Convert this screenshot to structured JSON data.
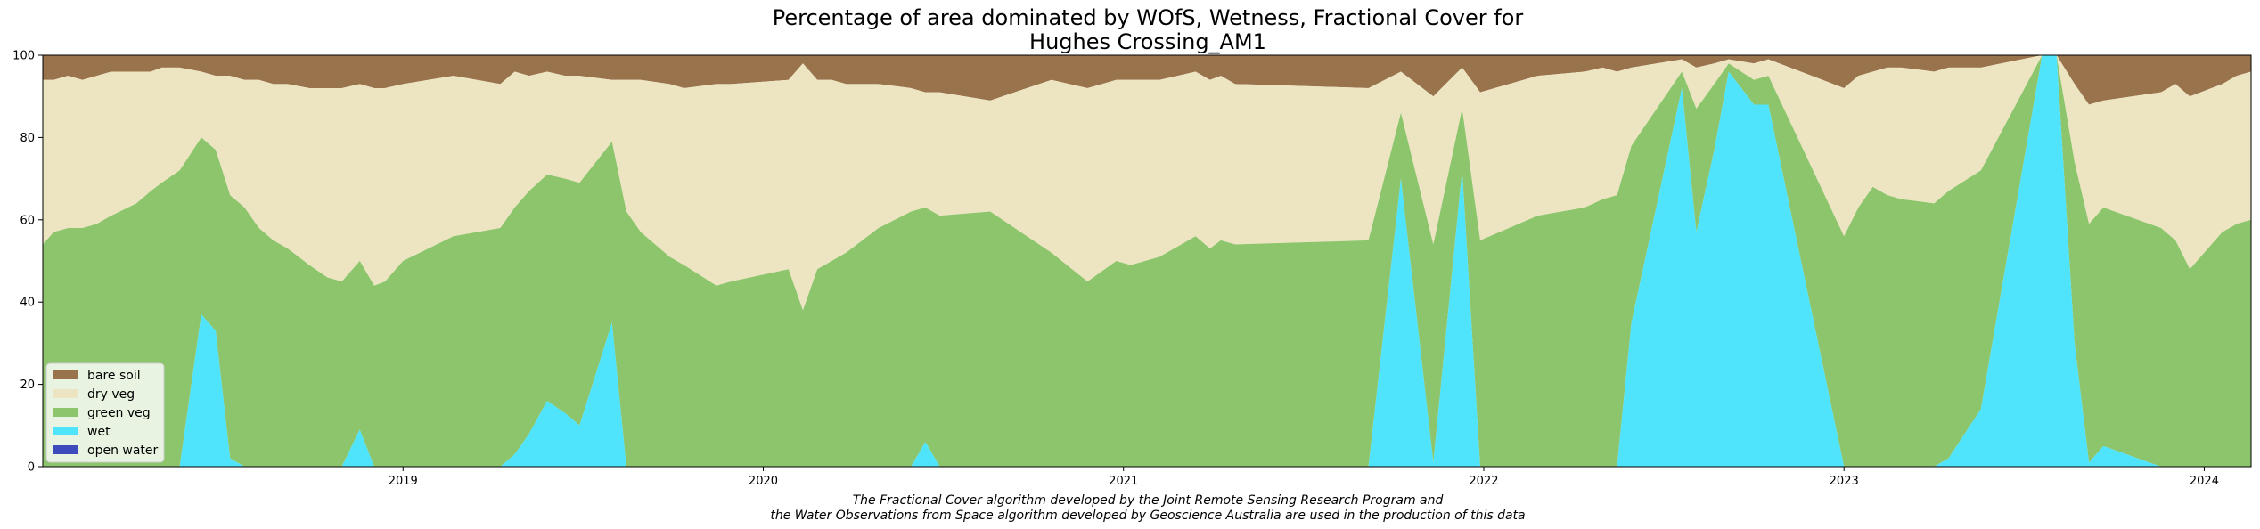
{
  "chart_data": {
    "type": "area",
    "stacked": true,
    "title_lines": [
      "Percentage of area dominated by WOfS, Wetness, Fractional Cover for",
      "Hughes Crossing_AM1"
    ],
    "xlabel": "",
    "ylabel": "",
    "ylim": [
      0,
      100
    ],
    "xlim": [
      2018.0,
      2024.13
    ],
    "y_ticks": [
      0,
      20,
      40,
      60,
      80,
      100
    ],
    "x_ticks": [
      2019,
      2020,
      2021,
      2022,
      2023,
      2024
    ],
    "x_tick_labels": [
      "2019",
      "2020",
      "2021",
      "2022",
      "2023",
      "2024"
    ],
    "grid": false,
    "legend_position": "lower-left",
    "footnote_lines": [
      "The Fractional Cover algorithm developed by the Joint Remote Sensing Research Program and",
      "the Water Observations from Space algorithm developed by Geoscience Australia are used in the production of this data"
    ],
    "colors": {
      "bare_soil": "#99734c",
      "dry_veg": "#ede4c1",
      "green_veg": "#8cc56b",
      "wet": "#4fe3fc",
      "open_water": "#3e4bbd"
    },
    "series_order": [
      "open water",
      "wet",
      "green veg",
      "dry veg",
      "bare soil"
    ],
    "legend": [
      "bare soil",
      "dry veg",
      "green veg",
      "wet",
      "open water"
    ],
    "points": [
      {
        "x": 2018.0,
        "wet": 0,
        "green": 54,
        "dry": 94,
        "bare": 100
      },
      {
        "x": 2018.03,
        "wet": 0,
        "green": 57,
        "dry": 94,
        "bare": 100
      },
      {
        "x": 2018.07,
        "wet": 0,
        "green": 58,
        "dry": 95,
        "bare": 100
      },
      {
        "x": 2018.11,
        "wet": 0,
        "green": 58,
        "dry": 94,
        "bare": 100
      },
      {
        "x": 2018.15,
        "wet": 0,
        "green": 59,
        "dry": 95,
        "bare": 100
      },
      {
        "x": 2018.19,
        "wet": 0,
        "green": 61,
        "dry": 96,
        "bare": 100
      },
      {
        "x": 2018.26,
        "wet": 0,
        "green": 64,
        "dry": 96,
        "bare": 100
      },
      {
        "x": 2018.3,
        "wet": 0,
        "green": 67,
        "dry": 96,
        "bare": 100
      },
      {
        "x": 2018.33,
        "wet": 0,
        "green": 69,
        "dry": 97,
        "bare": 100
      },
      {
        "x": 2018.38,
        "wet": 0,
        "green": 72,
        "dry": 97,
        "bare": 100
      },
      {
        "x": 2018.44,
        "wet": 37,
        "green": 80,
        "dry": 96,
        "bare": 100
      },
      {
        "x": 2018.48,
        "wet": 33,
        "green": 77,
        "dry": 95,
        "bare": 100
      },
      {
        "x": 2018.52,
        "wet": 2,
        "green": 66,
        "dry": 95,
        "bare": 100
      },
      {
        "x": 2018.56,
        "wet": 0,
        "green": 63,
        "dry": 94,
        "bare": 100
      },
      {
        "x": 2018.6,
        "wet": 0,
        "green": 58,
        "dry": 94,
        "bare": 100
      },
      {
        "x": 2018.64,
        "wet": 0,
        "green": 55,
        "dry": 93,
        "bare": 100
      },
      {
        "x": 2018.68,
        "wet": 0,
        "green": 53,
        "dry": 93,
        "bare": 100
      },
      {
        "x": 2018.74,
        "wet": 0,
        "green": 49,
        "dry": 92,
        "bare": 100
      },
      {
        "x": 2018.79,
        "wet": 0,
        "green": 46,
        "dry": 92,
        "bare": 100
      },
      {
        "x": 2018.83,
        "wet": 0,
        "green": 45,
        "dry": 92,
        "bare": 100
      },
      {
        "x": 2018.88,
        "wet": 9,
        "green": 50,
        "dry": 93,
        "bare": 100
      },
      {
        "x": 2018.92,
        "wet": 0,
        "green": 44,
        "dry": 92,
        "bare": 100
      },
      {
        "x": 2018.95,
        "wet": 0,
        "green": 45,
        "dry": 92,
        "bare": 100
      },
      {
        "x": 2019.0,
        "wet": 0,
        "green": 50,
        "dry": 93,
        "bare": 100
      },
      {
        "x": 2019.07,
        "wet": 0,
        "green": 53,
        "dry": 94,
        "bare": 100
      },
      {
        "x": 2019.14,
        "wet": 0,
        "green": 56,
        "dry": 95,
        "bare": 100
      },
      {
        "x": 2019.27,
        "wet": 0,
        "green": 58,
        "dry": 93,
        "bare": 100
      },
      {
        "x": 2019.31,
        "wet": 3,
        "green": 63,
        "dry": 96,
        "bare": 100
      },
      {
        "x": 2019.35,
        "wet": 8,
        "green": 67,
        "dry": 95,
        "bare": 100
      },
      {
        "x": 2019.4,
        "wet": 16,
        "green": 71,
        "dry": 96,
        "bare": 100
      },
      {
        "x": 2019.45,
        "wet": 13,
        "green": 70,
        "dry": 95,
        "bare": 100
      },
      {
        "x": 2019.49,
        "wet": 10,
        "green": 69,
        "dry": 95,
        "bare": 100
      },
      {
        "x": 2019.58,
        "wet": 35,
        "green": 79,
        "dry": 94,
        "bare": 100
      },
      {
        "x": 2019.62,
        "wet": 0,
        "green": 62,
        "dry": 94,
        "bare": 100
      },
      {
        "x": 2019.66,
        "wet": 0,
        "green": 57,
        "dry": 94,
        "bare": 100
      },
      {
        "x": 2019.74,
        "wet": 0,
        "green": 51,
        "dry": 93,
        "bare": 100
      },
      {
        "x": 2019.78,
        "wet": 0,
        "green": 49,
        "dry": 92,
        "bare": 100
      },
      {
        "x": 2019.87,
        "wet": 0,
        "green": 44,
        "dry": 93,
        "bare": 100
      },
      {
        "x": 2019.91,
        "wet": 0,
        "green": 45,
        "dry": 93,
        "bare": 100
      },
      {
        "x": 2020.07,
        "wet": 0,
        "green": 48,
        "dry": 94,
        "bare": 100
      },
      {
        "x": 2020.11,
        "wet": 0,
        "green": 38,
        "dry": 98,
        "bare": 100
      },
      {
        "x": 2020.15,
        "wet": 0,
        "green": 48,
        "dry": 94,
        "bare": 100
      },
      {
        "x": 2020.19,
        "wet": 0,
        "green": 50,
        "dry": 94,
        "bare": 100
      },
      {
        "x": 2020.23,
        "wet": 0,
        "green": 52,
        "dry": 93,
        "bare": 100
      },
      {
        "x": 2020.32,
        "wet": 0,
        "green": 58,
        "dry": 93,
        "bare": 100
      },
      {
        "x": 2020.41,
        "wet": 0,
        "green": 62,
        "dry": 92,
        "bare": 100
      },
      {
        "x": 2020.45,
        "wet": 6,
        "green": 63,
        "dry": 91,
        "bare": 100
      },
      {
        "x": 2020.49,
        "wet": 0,
        "green": 61,
        "dry": 91,
        "bare": 100
      },
      {
        "x": 2020.63,
        "wet": 0,
        "green": 62,
        "dry": 89,
        "bare": 100
      },
      {
        "x": 2020.8,
        "wet": 0,
        "green": 52,
        "dry": 94,
        "bare": 100
      },
      {
        "x": 2020.9,
        "wet": 0,
        "green": 45,
        "dry": 92,
        "bare": 100
      },
      {
        "x": 2020.98,
        "wet": 0,
        "green": 50,
        "dry": 94,
        "bare": 100
      },
      {
        "x": 2021.02,
        "wet": 0,
        "green": 49,
        "dry": 94,
        "bare": 100
      },
      {
        "x": 2021.1,
        "wet": 0,
        "green": 51,
        "dry": 94,
        "bare": 100
      },
      {
        "x": 2021.2,
        "wet": 0,
        "green": 56,
        "dry": 96,
        "bare": 100
      },
      {
        "x": 2021.24,
        "wet": 0,
        "green": 53,
        "dry": 94,
        "bare": 100
      },
      {
        "x": 2021.27,
        "wet": 0,
        "green": 55,
        "dry": 95,
        "bare": 100
      },
      {
        "x": 2021.31,
        "wet": 0,
        "green": 54,
        "dry": 93,
        "bare": 100
      },
      {
        "x": 2021.68,
        "wet": 0,
        "green": 55,
        "dry": 92,
        "bare": 100
      },
      {
        "x": 2021.77,
        "wet": 70,
        "green": 86,
        "dry": 96,
        "bare": 100
      },
      {
        "x": 2021.86,
        "wet": 1,
        "green": 54,
        "dry": 90,
        "bare": 100
      },
      {
        "x": 2021.94,
        "wet": 72,
        "green": 87,
        "dry": 97,
        "bare": 100
      },
      {
        "x": 2021.99,
        "wet": 0,
        "green": 55,
        "dry": 91,
        "bare": 100
      },
      {
        "x": 2022.15,
        "wet": 0,
        "green": 61,
        "dry": 95,
        "bare": 100
      },
      {
        "x": 2022.28,
        "wet": 0,
        "green": 63,
        "dry": 96,
        "bare": 100
      },
      {
        "x": 2022.33,
        "wet": 0,
        "green": 65,
        "dry": 97,
        "bare": 100
      },
      {
        "x": 2022.37,
        "wet": 0,
        "green": 66,
        "dry": 96,
        "bare": 100
      },
      {
        "x": 2022.41,
        "wet": 35,
        "green": 78,
        "dry": 97,
        "bare": 100
      },
      {
        "x": 2022.55,
        "wet": 92,
        "green": 96,
        "dry": 99,
        "bare": 100
      },
      {
        "x": 2022.59,
        "wet": 57,
        "green": 87,
        "dry": 97,
        "bare": 100
      },
      {
        "x": 2022.64,
        "wet": 77,
        "green": 93,
        "dry": 98,
        "bare": 100
      },
      {
        "x": 2022.68,
        "wet": 96,
        "green": 98,
        "dry": 99,
        "bare": 100
      },
      {
        "x": 2022.75,
        "wet": 88,
        "green": 94,
        "dry": 98,
        "bare": 100
      },
      {
        "x": 2022.79,
        "wet": 88,
        "green": 95,
        "dry": 99,
        "bare": 100
      },
      {
        "x": 2023.0,
        "wet": 0,
        "green": 56,
        "dry": 92,
        "bare": 100
      },
      {
        "x": 2023.04,
        "wet": 0,
        "green": 63,
        "dry": 95,
        "bare": 100
      },
      {
        "x": 2023.08,
        "wet": 0,
        "green": 68,
        "dry": 96,
        "bare": 100
      },
      {
        "x": 2023.12,
        "wet": 0,
        "green": 66,
        "dry": 97,
        "bare": 100
      },
      {
        "x": 2023.16,
        "wet": 0,
        "green": 65,
        "dry": 97,
        "bare": 100
      },
      {
        "x": 2023.25,
        "wet": 0,
        "green": 64,
        "dry": 96,
        "bare": 100
      },
      {
        "x": 2023.29,
        "wet": 2,
        "green": 67,
        "dry": 97,
        "bare": 100
      },
      {
        "x": 2023.38,
        "wet": 14,
        "green": 72,
        "dry": 97,
        "bare": 100
      },
      {
        "x": 2023.55,
        "wet": 100,
        "green": 100,
        "dry": 100,
        "bare": 100
      },
      {
        "x": 2023.59,
        "wet": 100,
        "green": 100,
        "dry": 100,
        "bare": 100
      },
      {
        "x": 2023.64,
        "wet": 30,
        "green": 74,
        "dry": 93,
        "bare": 100
      },
      {
        "x": 2023.68,
        "wet": 1,
        "green": 59,
        "dry": 88,
        "bare": 100
      },
      {
        "x": 2023.72,
        "wet": 5,
        "green": 63,
        "dry": 89,
        "bare": 100
      },
      {
        "x": 2023.88,
        "wet": 0,
        "green": 58,
        "dry": 91,
        "bare": 100
      },
      {
        "x": 2023.92,
        "wet": 0,
        "green": 55,
        "dry": 93,
        "bare": 100
      },
      {
        "x": 2023.96,
        "wet": 0,
        "green": 48,
        "dry": 90,
        "bare": 100
      },
      {
        "x": 2024.05,
        "wet": 0,
        "green": 57,
        "dry": 93,
        "bare": 100
      },
      {
        "x": 2024.09,
        "wet": 0,
        "green": 59,
        "dry": 95,
        "bare": 100
      },
      {
        "x": 2024.13,
        "wet": 0,
        "green": 60,
        "dry": 96,
        "bare": 100
      }
    ]
  }
}
